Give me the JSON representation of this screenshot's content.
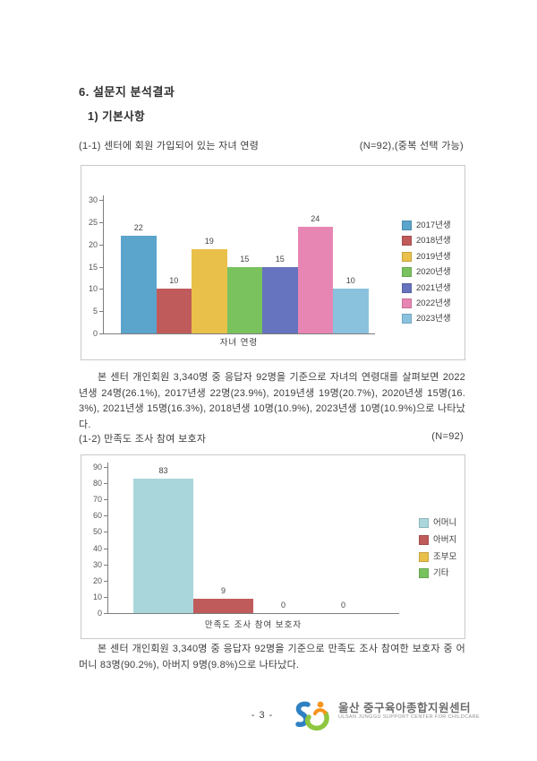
{
  "doc": {
    "section_title": "6. 설문지 분석결과",
    "subsection_title": "1) 기본사항"
  },
  "q1": {
    "title": "(1-1) 센터에 회원 가입되어 있는 자녀 연령",
    "note": "(N=92),(중복 선택 가능)",
    "analysis": "본 센터 개인회원 3,340명 중 응답자 92명을 기준으로 자녀의 연령대를 살펴보면 2022년생 24명(26.1%), 2017년생 22명(23.9%), 2019년생 19명(20.7%), 2020년생 15명(16.3%), 2021년생 15명(16.3%), 2018년생 10명(10.9%), 2023년생 10명(10.9%)으로 나타났다."
  },
  "q2": {
    "title": "(1-2) 만족도 조사 참여 보호자",
    "note": "(N=92)",
    "analysis": "본 센터 개인회원 3,340명 중 응답자 92명을 기준으로 만족도 조사 참여한 보호자 중 어머니 83명(90.2%), 아버지 9명(9.8%)으로 나타났다."
  },
  "chart_data": [
    {
      "type": "bar",
      "title": "",
      "categories": [
        "2017년생",
        "2018년생",
        "2019년생",
        "2020년생",
        "2021년생",
        "2022년생",
        "2023년생"
      ],
      "values": [
        22,
        10,
        19,
        15,
        15,
        24,
        10
      ],
      "colors": [
        "#5ba4cc",
        "#c05b5b",
        "#e9c04a",
        "#79c25e",
        "#6673be",
        "#e786b3",
        "#8ac2de"
      ],
      "xlabel": "자녀 연령",
      "ylabel": "",
      "ylim": [
        0,
        30
      ],
      "ytick_step": 5,
      "grid": false,
      "legend_position": "right"
    },
    {
      "type": "bar",
      "title": "",
      "categories": [
        "어머니",
        "아버지",
        "조부모",
        "기타"
      ],
      "values": [
        83,
        9,
        0,
        0
      ],
      "colors": [
        "#a9d6db",
        "#c05b5b",
        "#e9c04a",
        "#79c25e"
      ],
      "xlabel": "만족도 조사 참여 보호자",
      "ylabel": "",
      "ylim": [
        0,
        90
      ],
      "ytick_step": 10,
      "grid": false,
      "legend_position": "right"
    }
  ],
  "footer": {
    "page_label": "- 3 -",
    "org_name_ko": "울산 중구육아종합지원센터",
    "org_name_en": "ULSAN JUNGGU SUPPORT CENTER FOR CHILDCARE"
  },
  "logo_colors": {
    "blue": "#2f80c3",
    "green": "#8ec63f",
    "orange": "#f7941d"
  }
}
